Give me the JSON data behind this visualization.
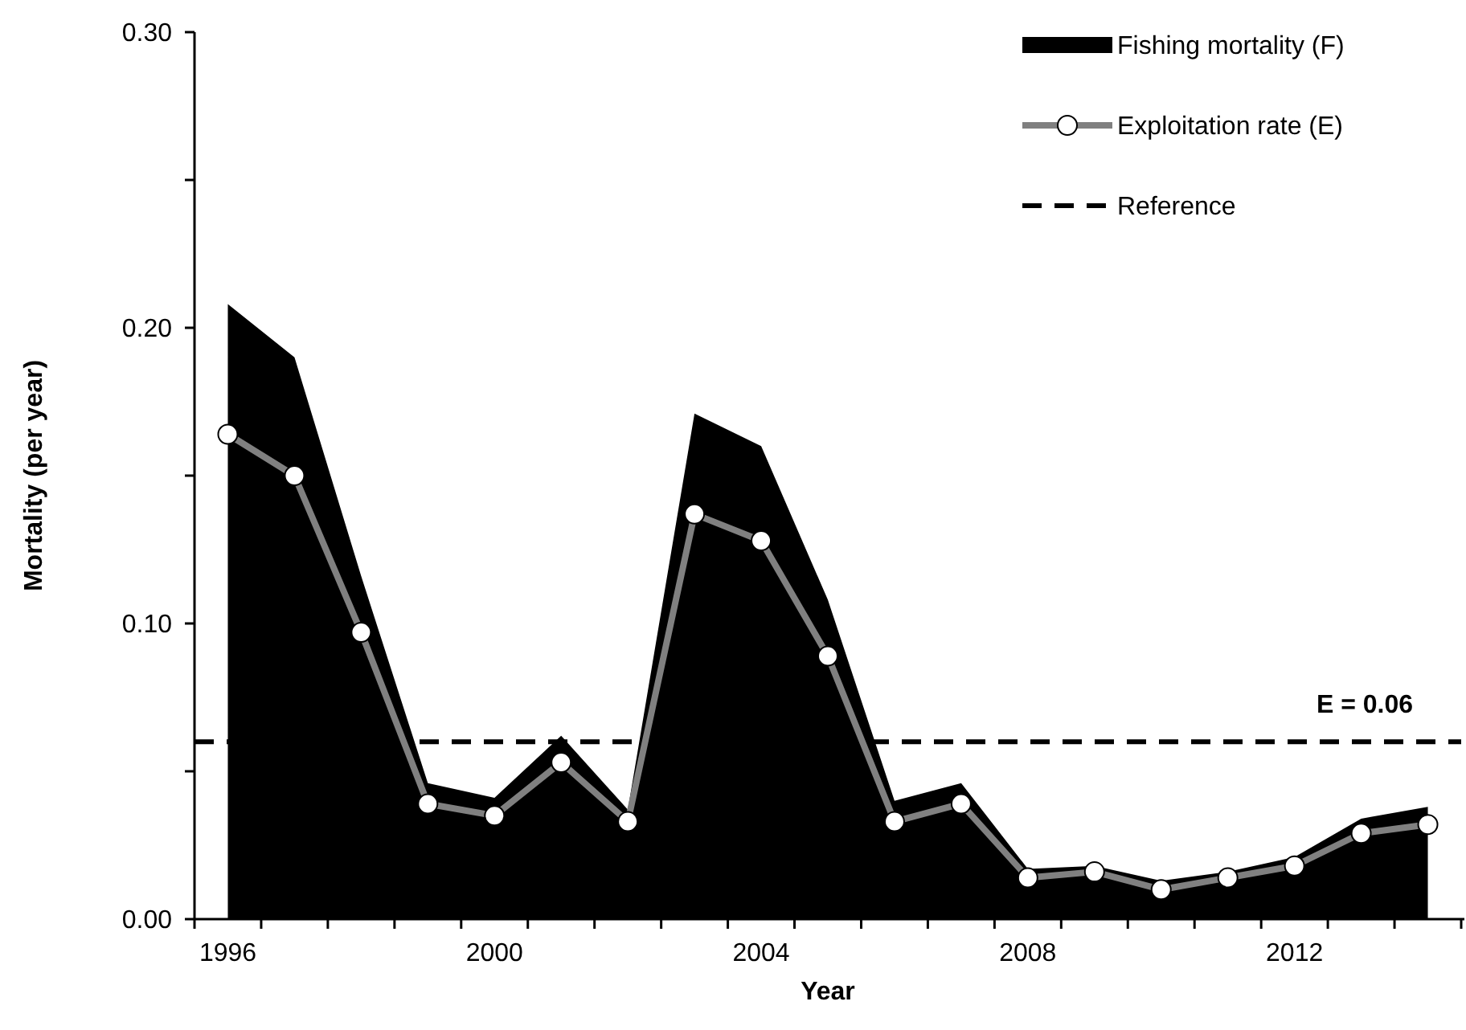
{
  "chart_data": {
    "type": "line",
    "xlabel": "Year",
    "ylabel": "Mortality (per year)",
    "categories": [
      "1996",
      null,
      null,
      null,
      "2000",
      null,
      null,
      null,
      "2004",
      null,
      null,
      null,
      "2008",
      null,
      null,
      null,
      "2012",
      null,
      null
    ],
    "series": [
      {
        "name": "Fishing mortality (F)",
        "type": "area",
        "color": "#000000",
        "values": [
          0.208,
          0.19,
          0.116,
          0.046,
          0.041,
          0.062,
          0.037,
          0.171,
          0.16,
          0.108,
          0.04,
          0.046,
          0.017,
          0.018,
          0.013,
          0.016,
          0.021,
          0.034,
          0.038
        ]
      },
      {
        "name": "Exploitation rate (E)",
        "color": "#808080",
        "marker": "circle",
        "values": [
          0.164,
          0.15,
          0.097,
          0.039,
          0.035,
          0.053,
          0.033,
          0.137,
          0.128,
          0.089,
          0.033,
          0.039,
          0.014,
          0.016,
          0.01,
          0.014,
          0.018,
          0.029,
          0.032
        ]
      }
    ],
    "ref_lines": [
      {
        "axis": "y",
        "value": 0.06,
        "label": "Reference",
        "color": "#000000",
        "line_style": "dashed"
      }
    ],
    "annotations": [
      {
        "text": "E = 0.06",
        "y": 0.06
      }
    ],
    "ylim": [
      0,
      0.3
    ],
    "yticks": [
      {
        "value": 0,
        "label": "0.00"
      },
      {
        "value": 0.05,
        "label": null
      },
      {
        "value": 0.1,
        "label": "0.10"
      },
      {
        "value": 0.15,
        "label": null
      },
      {
        "value": 0.2,
        "label": "0.20"
      },
      {
        "value": 0.25,
        "label": null
      },
      {
        "value": 0.3,
        "label": "0.30"
      }
    ],
    "grid": false,
    "legend": "top right"
  }
}
